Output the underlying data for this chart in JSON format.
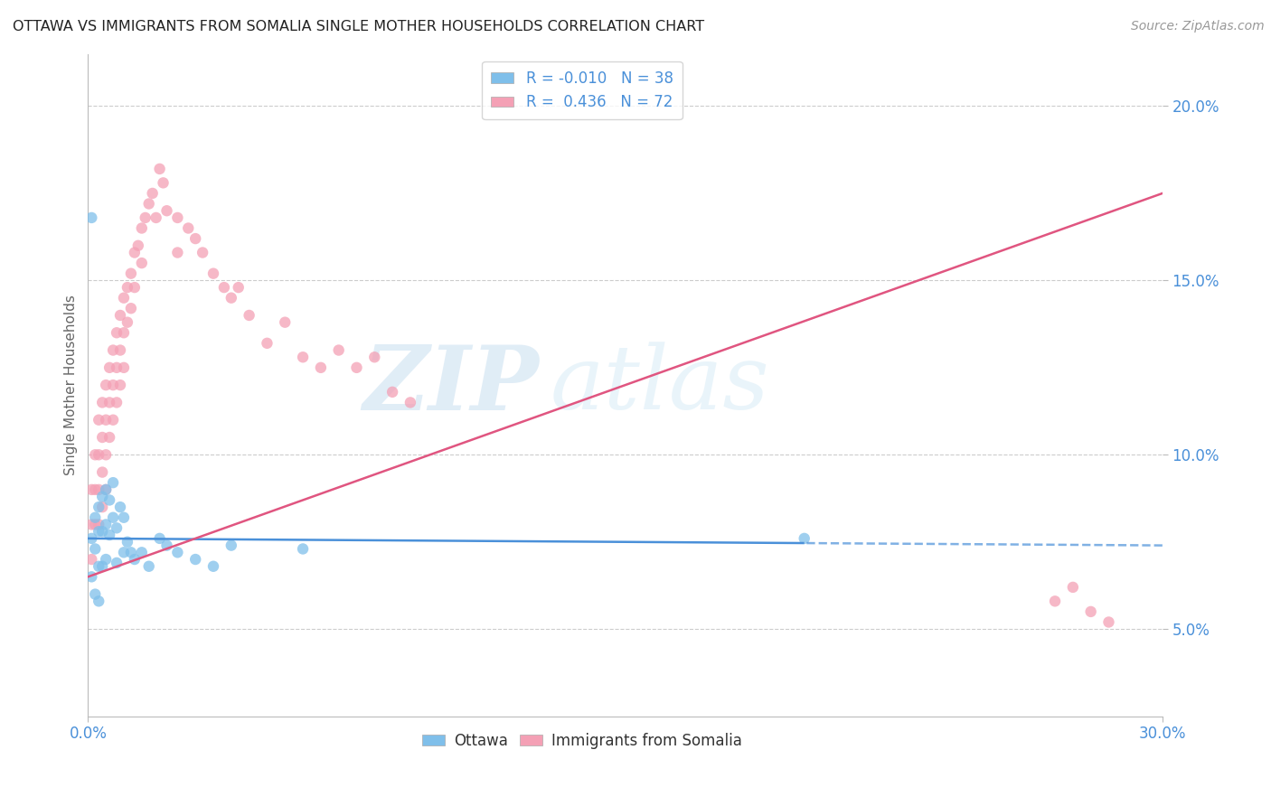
{
  "title": "OTTAWA VS IMMIGRANTS FROM SOMALIA SINGLE MOTHER HOUSEHOLDS CORRELATION CHART",
  "source": "Source: ZipAtlas.com",
  "ylabel": "Single Mother Households",
  "yticks": [
    "5.0%",
    "10.0%",
    "15.0%",
    "20.0%"
  ],
  "ytick_vals": [
    0.05,
    0.1,
    0.15,
    0.2
  ],
  "xlim": [
    0.0,
    0.3
  ],
  "ylim": [
    0.025,
    0.215
  ],
  "blue_color": "#7fbfea",
  "pink_color": "#f4a0b5",
  "line_blue": "#4a90d9",
  "line_pink": "#e05580",
  "text_color": "#4a90d9",
  "watermark_zip": "ZIP",
  "watermark_atlas": "atlas",
  "blue_line_solid_end": 0.2,
  "blue_line_start_y": 0.076,
  "blue_line_end_y": 0.074,
  "pink_line_start_y": 0.065,
  "pink_line_end_y": 0.175,
  "ottawa_x": [
    0.001,
    0.001,
    0.002,
    0.002,
    0.002,
    0.003,
    0.003,
    0.003,
    0.003,
    0.004,
    0.004,
    0.004,
    0.004,
    0.005,
    0.005,
    0.005,
    0.005,
    0.006,
    0.006,
    0.007,
    0.007,
    0.008,
    0.008,
    0.009,
    0.009,
    0.01,
    0.01,
    0.011,
    0.012,
    0.013,
    0.015,
    0.017,
    0.02,
    0.025,
    0.03,
    0.04,
    0.06,
    0.2
  ],
  "ottawa_y": [
    0.076,
    0.068,
    0.08,
    0.072,
    0.06,
    0.085,
    0.078,
    0.07,
    0.063,
    0.09,
    0.082,
    0.074,
    0.066,
    0.088,
    0.08,
    0.072,
    0.064,
    0.085,
    0.076,
    0.09,
    0.082,
    0.078,
    0.07,
    0.085,
    0.077,
    0.08,
    0.072,
    0.075,
    0.073,
    0.072,
    0.07,
    0.068,
    0.075,
    0.072,
    0.07,
    0.068,
    0.073,
    0.076
  ],
  "somalia_x": [
    0.001,
    0.001,
    0.002,
    0.002,
    0.002,
    0.003,
    0.003,
    0.003,
    0.003,
    0.004,
    0.004,
    0.004,
    0.004,
    0.005,
    0.005,
    0.005,
    0.005,
    0.006,
    0.006,
    0.006,
    0.007,
    0.007,
    0.007,
    0.008,
    0.008,
    0.008,
    0.009,
    0.009,
    0.01,
    0.01,
    0.01,
    0.011,
    0.011,
    0.012,
    0.012,
    0.013,
    0.013,
    0.014,
    0.014,
    0.015,
    0.015,
    0.016,
    0.017,
    0.018,
    0.019,
    0.02,
    0.021,
    0.022,
    0.023,
    0.025,
    0.027,
    0.03,
    0.03,
    0.032,
    0.035,
    0.038,
    0.04,
    0.042,
    0.045,
    0.05,
    0.055,
    0.06,
    0.065,
    0.07,
    0.075,
    0.08,
    0.085,
    0.09,
    0.27,
    0.275,
    0.28,
    0.285
  ],
  "somalia_y": [
    0.085,
    0.075,
    0.095,
    0.085,
    0.075,
    0.1,
    0.09,
    0.08,
    0.07,
    0.105,
    0.095,
    0.085,
    0.075,
    0.11,
    0.1,
    0.09,
    0.08,
    0.115,
    0.105,
    0.095,
    0.12,
    0.11,
    0.1,
    0.125,
    0.115,
    0.105,
    0.13,
    0.12,
    0.135,
    0.125,
    0.115,
    0.14,
    0.13,
    0.145,
    0.135,
    0.15,
    0.14,
    0.155,
    0.145,
    0.16,
    0.15,
    0.165,
    0.17,
    0.175,
    0.165,
    0.18,
    0.17,
    0.16,
    0.155,
    0.165,
    0.17,
    0.16,
    0.15,
    0.155,
    0.145,
    0.155,
    0.14,
    0.145,
    0.15,
    0.13,
    0.14,
    0.13,
    0.125,
    0.14,
    0.13,
    0.135,
    0.125,
    0.115,
    0.055,
    0.06,
    0.055,
    0.05
  ]
}
